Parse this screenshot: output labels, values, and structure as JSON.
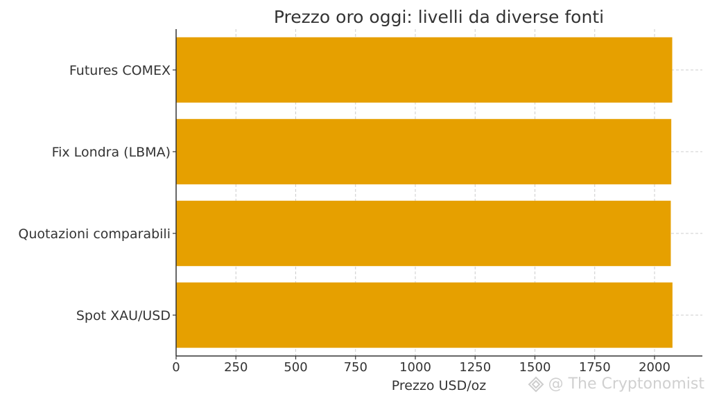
{
  "chart_data": {
    "type": "bar",
    "orientation": "horizontal",
    "title": "Prezzo oro oggi: livelli da diverse fonti",
    "xlabel": "Prezzo USD/oz",
    "ylabel": "",
    "categories": [
      "Spot XAU/USD",
      "Quotazioni comparabili",
      "Fix Londra (LBMA)",
      "Futures COMEX"
    ],
    "values": [
      2075,
      2068,
      2070,
      2074
    ],
    "xlim": [
      0,
      2200
    ],
    "xticks": [
      0,
      250,
      500,
      750,
      1000,
      1250,
      1500,
      1750,
      2000
    ],
    "grid": true,
    "bar_color": "#E6A000"
  },
  "watermark": {
    "text": "@ The Cryptonomist",
    "icon": "cryptonomist-logo-icon"
  }
}
